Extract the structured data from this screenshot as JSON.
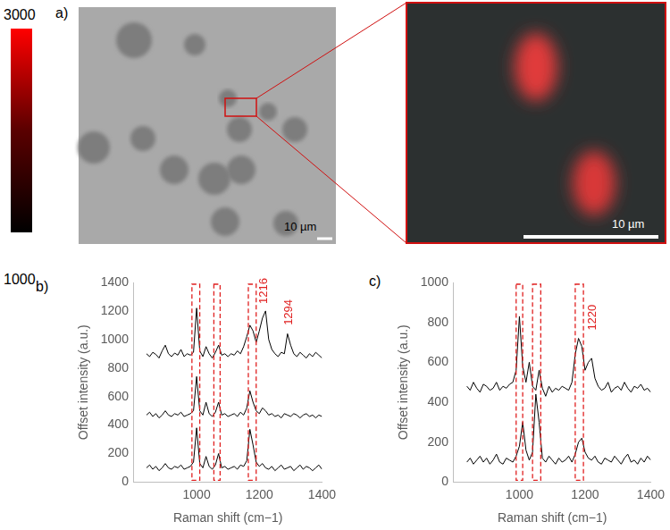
{
  "figure": {
    "panel_a": {
      "panel_label": "a)",
      "colorbar": {
        "range": [
          1000,
          3000
        ],
        "ticks": [
          1000,
          3000
        ],
        "colors": [
          "#000000",
          "#5a0000",
          "#ff0000"
        ]
      },
      "image_scale_bar": "10 µm",
      "inset_scale_bar": "10 µm"
    }
  },
  "chart_data": [
    {
      "type": "line",
      "panel_label": "b)",
      "x_label": "Raman shift (cm−1)",
      "y_label": "Offset intensity (a.u.)",
      "xlim": [
        800,
        1400
      ],
      "xticks": [
        1000,
        1200,
        1400
      ],
      "ylim": [
        0,
        1400
      ],
      "yticks": [
        0,
        200,
        400,
        600,
        800,
        1000,
        1200,
        1400
      ],
      "grid": false,
      "x": [
        840,
        850,
        860,
        870,
        880,
        890,
        900,
        910,
        920,
        930,
        940,
        950,
        960,
        970,
        980,
        990,
        1000,
        1010,
        1020,
        1030,
        1040,
        1050,
        1060,
        1070,
        1080,
        1090,
        1100,
        1110,
        1120,
        1130,
        1140,
        1150,
        1160,
        1170,
        1180,
        1190,
        1200,
        1210,
        1220,
        1230,
        1240,
        1250,
        1260,
        1270,
        1280,
        1290,
        1300,
        1310,
        1320,
        1330,
        1340,
        1350,
        1360,
        1370,
        1380,
        1390,
        1400
      ],
      "series": [
        {
          "color": "#000000",
          "values": [
            900,
            880,
            910,
            895,
            870,
            920,
            960,
            900,
            880,
            905,
            890,
            930,
            880,
            900,
            890,
            910,
            1220,
            920,
            880,
            950,
            900,
            870,
            910,
            960,
            890,
            900,
            880,
            900,
            890,
            920,
            900,
            950,
            1020,
            1100,
            1060,
            980,
            1060,
            1150,
            1200,
            1000,
            930,
            900,
            880,
            910,
            900,
            1040,
            960,
            900,
            880,
            910,
            890,
            870,
            900,
            880,
            910,
            890,
            870
          ]
        },
        {
          "color": "#000000",
          "values": [
            470,
            490,
            460,
            480,
            450,
            470,
            500,
            470,
            460,
            480,
            470,
            490,
            460,
            470,
            480,
            500,
            740,
            500,
            470,
            560,
            480,
            460,
            490,
            560,
            470,
            480,
            460,
            470,
            480,
            460,
            490,
            470,
            520,
            640,
            560,
            500,
            480,
            520,
            500,
            470,
            480,
            460,
            470,
            450,
            480,
            470,
            460,
            480,
            470,
            450,
            470,
            480,
            460,
            470,
            450,
            470,
            460
          ]
        },
        {
          "color": "#000000",
          "values": [
            100,
            120,
            90,
            110,
            80,
            100,
            130,
            100,
            90,
            110,
            100,
            120,
            90,
            100,
            110,
            140,
            380,
            130,
            100,
            180,
            110,
            90,
            120,
            200,
            100,
            110,
            90,
            100,
            110,
            90,
            120,
            110,
            150,
            370,
            260,
            140,
            110,
            130,
            100,
            90,
            110,
            80,
            100,
            120,
            90,
            100,
            110,
            80,
            100,
            120,
            90,
            110,
            100,
            80,
            100,
            120,
            90
          ]
        }
      ],
      "highlight_bands": {
        "color": "#e02020",
        "ranges": [
          [
            985,
            1010
          ],
          [
            1055,
            1075
          ],
          [
            1165,
            1190
          ]
        ]
      },
      "annotations": [
        {
          "text": "1216",
          "x": 1216,
          "y": 1250,
          "color": "#e02020"
        },
        {
          "text": "1294",
          "x": 1294,
          "y": 1100,
          "color": "#e02020"
        }
      ]
    },
    {
      "type": "line",
      "panel_label": "c)",
      "x_label": "Raman shift (cm−1)",
      "y_label": "Offset intensity (a.u.)",
      "xlim": [
        800,
        1400
      ],
      "xticks": [
        1000,
        1200,
        1400
      ],
      "ylim": [
        0,
        1000
      ],
      "yticks": [
        0,
        200,
        400,
        600,
        800,
        1000
      ],
      "grid": false,
      "x": [
        840,
        850,
        860,
        870,
        880,
        890,
        900,
        910,
        920,
        930,
        940,
        950,
        960,
        970,
        980,
        990,
        1000,
        1010,
        1020,
        1030,
        1040,
        1050,
        1060,
        1070,
        1080,
        1090,
        1100,
        1110,
        1120,
        1130,
        1140,
        1150,
        1160,
        1170,
        1180,
        1190,
        1200,
        1210,
        1220,
        1230,
        1240,
        1250,
        1260,
        1270,
        1280,
        1290,
        1300,
        1310,
        1320,
        1330,
        1340,
        1350,
        1360,
        1370,
        1380,
        1390,
        1400
      ],
      "series": [
        {
          "color": "#000000",
          "values": [
            480,
            460,
            500,
            470,
            450,
            490,
            480,
            460,
            470,
            500,
            460,
            480,
            470,
            490,
            500,
            560,
            830,
            580,
            500,
            600,
            480,
            460,
            560,
            470,
            430,
            480,
            450,
            470,
            460,
            480,
            470,
            460,
            500,
            640,
            720,
            680,
            560,
            600,
            620,
            520,
            480,
            460,
            470,
            500,
            450,
            470,
            480,
            460,
            500,
            470,
            450,
            480,
            470,
            490,
            460,
            470,
            450
          ]
        },
        {
          "color": "#000000",
          "values": [
            100,
            120,
            90,
            110,
            130,
            100,
            120,
            90,
            110,
            140,
            100,
            90,
            120,
            110,
            100,
            130,
            180,
            300,
            160,
            110,
            150,
            440,
            300,
            120,
            100,
            130,
            110,
            90,
            120,
            100,
            110,
            130,
            100,
            140,
            200,
            220,
            150,
            120,
            110,
            130,
            100,
            90,
            120,
            110,
            100,
            130,
            110,
            90,
            120,
            140,
            100,
            110,
            90,
            120,
            100,
            130,
            110
          ]
        }
      ],
      "highlight_bands": {
        "color": "#e02020",
        "ranges": [
          [
            990,
            1010
          ],
          [
            1040,
            1065
          ],
          [
            1170,
            1195
          ]
        ]
      },
      "annotations": [
        {
          "text": "1220",
          "x": 1222,
          "y": 760,
          "color": "#e02020"
        }
      ]
    }
  ]
}
